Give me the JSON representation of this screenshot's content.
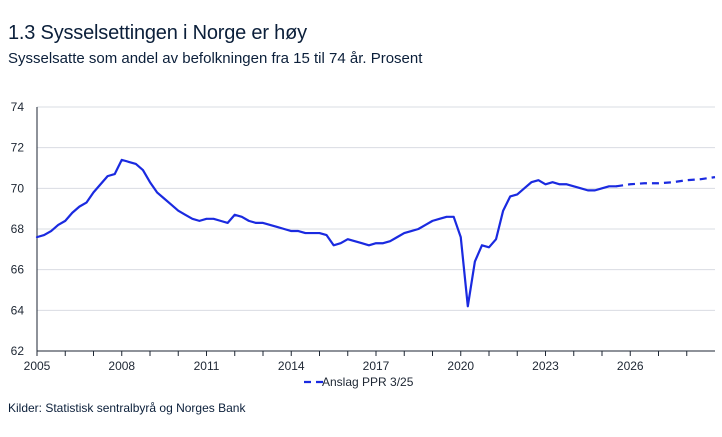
{
  "title": "1.3 Sysselsettingen i Norge er høy",
  "subtitle": "Sysselsatte som andel av befolkningen fra 15 til 74 år. Prosent",
  "source": "Kilder: Statistisk sentralbyrå og Norges Bank",
  "colors": {
    "line": "#1a2ae0",
    "axis": "#1d2633",
    "grid": "#d9dce3"
  },
  "chart_data": {
    "type": "line",
    "xlim": [
      2005,
      2029
    ],
    "ylim": [
      62,
      74
    ],
    "y_ticks": [
      62,
      64,
      66,
      68,
      70,
      72,
      74
    ],
    "x_ticks": [
      2005,
      2008,
      2011,
      2014,
      2017,
      2020,
      2023,
      2026
    ],
    "grid": "horizontal",
    "legend": {
      "position": "bottom-center",
      "entries": [
        {
          "label": "Anslag PPR 3/25",
          "style": "dashed"
        }
      ]
    },
    "series": [
      {
        "name": "",
        "style": "solid",
        "x": [
          2005.0,
          2005.25,
          2005.5,
          2005.75,
          2006.0,
          2006.25,
          2006.5,
          2006.75,
          2007.0,
          2007.25,
          2007.5,
          2007.75,
          2008.0,
          2008.25,
          2008.5,
          2008.75,
          2009.0,
          2009.25,
          2009.5,
          2009.75,
          2010.0,
          2010.25,
          2010.5,
          2010.75,
          2011.0,
          2011.25,
          2011.5,
          2011.75,
          2012.0,
          2012.25,
          2012.5,
          2012.75,
          2013.0,
          2013.25,
          2013.5,
          2013.75,
          2014.0,
          2014.25,
          2014.5,
          2014.75,
          2015.0,
          2015.25,
          2015.5,
          2015.75,
          2016.0,
          2016.25,
          2016.5,
          2016.75,
          2017.0,
          2017.25,
          2017.5,
          2017.75,
          2018.0,
          2018.25,
          2018.5,
          2018.75,
          2019.0,
          2019.25,
          2019.5,
          2019.75,
          2020.0,
          2020.25,
          2020.5,
          2020.75,
          2021.0,
          2021.25,
          2021.5,
          2021.75,
          2022.0,
          2022.25,
          2022.5,
          2022.75,
          2023.0,
          2023.25,
          2023.5,
          2023.75,
          2024.0,
          2024.25,
          2024.5,
          2024.75,
          2025.0,
          2025.25,
          2025.5
        ],
        "y": [
          67.6,
          67.7,
          67.9,
          68.2,
          68.4,
          68.8,
          69.1,
          69.3,
          69.8,
          70.2,
          70.6,
          70.7,
          71.4,
          71.3,
          71.2,
          70.9,
          70.3,
          69.8,
          69.5,
          69.2,
          68.9,
          68.7,
          68.5,
          68.4,
          68.5,
          68.5,
          68.4,
          68.3,
          68.7,
          68.6,
          68.4,
          68.3,
          68.3,
          68.2,
          68.1,
          68.0,
          67.9,
          67.9,
          67.8,
          67.8,
          67.8,
          67.7,
          67.2,
          67.3,
          67.5,
          67.4,
          67.3,
          67.2,
          67.3,
          67.3,
          67.4,
          67.6,
          67.8,
          67.9,
          68.0,
          68.2,
          68.4,
          68.5,
          68.6,
          68.6,
          67.6,
          64.2,
          66.4,
          67.2,
          67.1,
          67.5,
          68.9,
          69.6,
          69.7,
          70.0,
          70.3,
          70.4,
          70.2,
          70.3,
          70.2,
          70.2,
          70.1,
          70.0,
          69.9,
          69.9,
          70.0,
          70.1,
          70.1
        ]
      },
      {
        "name": "Anslag PPR 3/25",
        "style": "dashed",
        "x": [
          2025.5,
          2026.0,
          2026.5,
          2027.0,
          2027.5,
          2028.0,
          2028.5,
          2029.0
        ],
        "y": [
          70.1,
          70.2,
          70.25,
          70.25,
          70.3,
          70.4,
          70.45,
          70.55
        ]
      }
    ]
  }
}
